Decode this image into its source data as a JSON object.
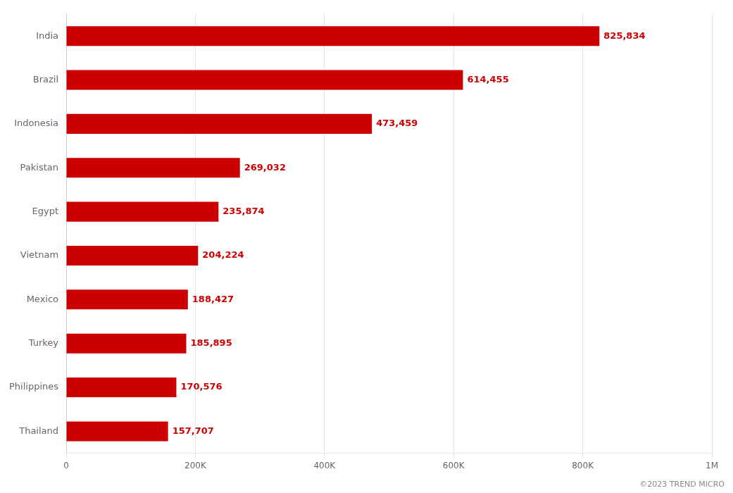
{
  "chart_data": {
    "type": "bar",
    "orientation": "horizontal",
    "categories": [
      "Thailand",
      "Philippines",
      "Turkey",
      "Mexico",
      "Vietnam",
      "Egypt",
      "Pakistan",
      "Indonesia",
      "Brazil",
      "India"
    ],
    "values": [
      157707,
      170576,
      185895,
      188427,
      204224,
      235874,
      269032,
      473459,
      614455,
      825834
    ],
    "value_labels": [
      "157,707",
      "170,576",
      "185,895",
      "188,427",
      "204,224",
      "235,874",
      "269,032",
      "473,459",
      "614,455",
      "825,834"
    ],
    "data_labels": true,
    "color": "#CC0000",
    "xlim": [
      0,
      1000000
    ],
    "xticks": [
      0,
      {
        "value": 200000,
        "label": "200K"
      },
      {
        "value": 400000,
        "label": "400K"
      },
      {
        "value": 600000,
        "label": "600K"
      },
      {
        "value": 800000,
        "label": "800K"
      },
      {
        "value": 1000000,
        "label": "1M"
      }
    ],
    "grid": true,
    "annotations": [
      "©2023 TREND MICRO"
    ]
  }
}
